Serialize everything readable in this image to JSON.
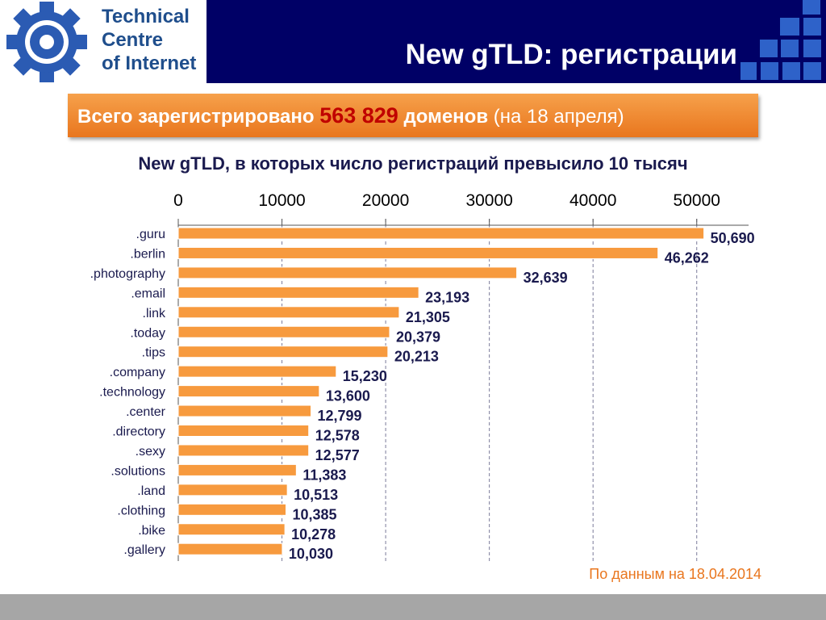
{
  "header": {
    "logo_lines": [
      "Technical",
      "Centre",
      "of Internet"
    ],
    "title": "New gTLD: регистрации"
  },
  "banner": {
    "prefix": "Всего зарегистрировано",
    "number": "563 829",
    "suffix_bold": "доменов",
    "suffix": "(на 18 апреля)"
  },
  "source_note": "По данным на 18.04.2014",
  "colors": {
    "header_bg": "#000066",
    "bar": "#f79a3e",
    "banner": "#ee8529",
    "highlight_number": "#c00000",
    "label_text": "#1a1a4e",
    "accent_squares": "#2e62c9"
  },
  "chart_data": {
    "type": "bar",
    "orientation": "horizontal",
    "title": "New gTLD, в которых число регистраций превысило 10 тысяч",
    "categories": [
      ".guru",
      ".berlin",
      ".photography",
      ".email",
      ".link",
      ".today",
      ".tips",
      ".company",
      ".technology",
      ".center",
      ".directory",
      ".sexy",
      ".solutions",
      ".land",
      ".clothing",
      ".bike",
      ".gallery"
    ],
    "values": [
      50690,
      46262,
      32639,
      23193,
      21305,
      20379,
      20213,
      15230,
      13600,
      12799,
      12578,
      12577,
      11383,
      10513,
      10385,
      10278,
      10030
    ],
    "value_labels": [
      "50,690",
      "46,262",
      "32,639",
      "23,193",
      "21,305",
      "20,379",
      "20,213",
      "15,230",
      "13,600",
      "12,799",
      "12,578",
      "12,577",
      "11,383",
      "10,513",
      "10,385",
      "10,278",
      "10,030"
    ],
    "xticks": [
      0,
      10000,
      20000,
      30000,
      40000,
      50000
    ],
    "xtick_labels": [
      "0",
      "10000",
      "20000",
      "30000",
      "40000",
      "50000"
    ],
    "xlim": [
      0,
      55000
    ],
    "axis_position": "top",
    "grid": "vertical dashed"
  }
}
